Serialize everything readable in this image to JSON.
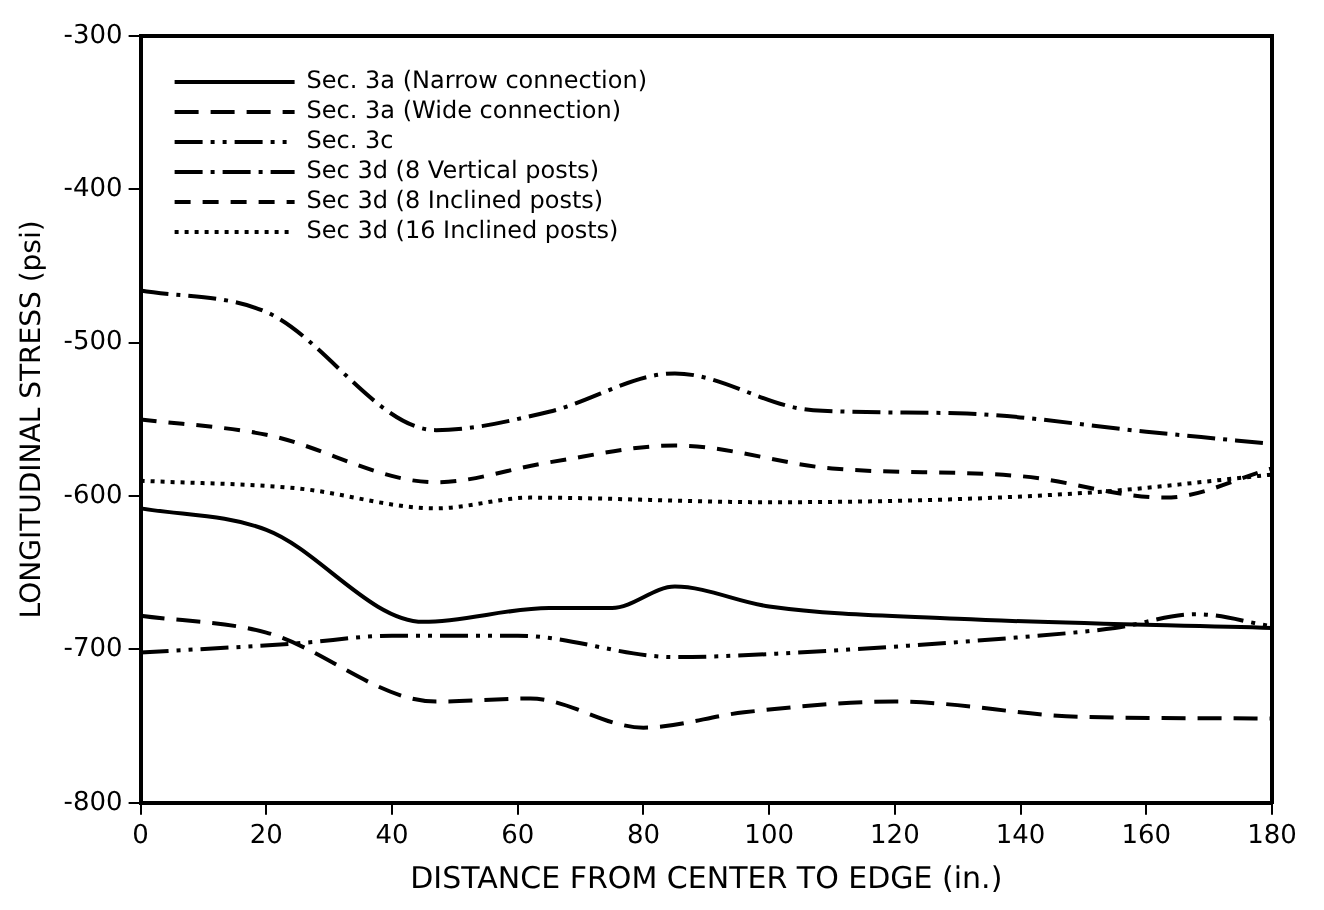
{
  "chart_data": {
    "type": "line",
    "xlabel": "DISTANCE FROM CENTER TO EDGE (in.)",
    "ylabel": "LONGITUDINAL STRESS (psi)",
    "xlim": [
      0,
      180
    ],
    "xticks": [
      0,
      20,
      40,
      60,
      80,
      100,
      120,
      140,
      160,
      180
    ],
    "ylim": [
      -800,
      -300
    ],
    "yticks": [
      -800,
      -700,
      -600,
      -500,
      -400,
      -300
    ],
    "grid": false,
    "legend": "top",
    "marker": "none",
    "series": [
      {
        "name": "Sec. 3a (Narrow connection)",
        "color": "#000000",
        "line_style": "solid",
        "x": [
          0,
          20,
          45,
          65,
          75,
          85,
          100,
          130,
          180
        ],
        "values": [
          -608,
          -622,
          -682,
          -673,
          -673,
          -659,
          -672,
          -680,
          -686
        ]
      },
      {
        "name": "Sec. 3a (Wide connection)",
        "color": "#000000",
        "line_style": "dashed",
        "x": [
          0,
          20,
          47,
          62,
          80,
          96,
          120,
          150,
          180
        ],
        "values": [
          -678,
          -689,
          -734,
          -732,
          -751,
          -741,
          -734,
          -744,
          -745
        ]
      },
      {
        "name": "Sec. 3c",
        "color": "#000000",
        "line_style": "dashed",
        "x": [
          0,
          25,
          40,
          60,
          85,
          100,
          140,
          155,
          168,
          180
        ],
        "values": [
          -702,
          -696,
          -691,
          -691,
          -705,
          -703,
          -692,
          -686,
          -677,
          -685
        ]
      },
      {
        "name": "Sec 3d (8 Vertical posts)",
        "color": "#000000",
        "line_style": "dashed",
        "x": [
          0,
          20,
          47,
          65,
          85,
          107,
          130,
          160,
          180
        ],
        "values": [
          -466,
          -480,
          -557,
          -545,
          -520,
          -544,
          -546,
          -558,
          -566
        ]
      },
      {
        "name": "Sec 3d (8 Inclined posts)",
        "color": "#000000",
        "line_style": "dashed",
        "x": [
          0,
          20,
          47,
          65,
          85,
          110,
          140,
          163,
          180
        ],
        "values": [
          -550,
          -560,
          -591,
          -578,
          -567,
          -582,
          -587,
          -601,
          -582
        ]
      },
      {
        "name": "Sec 3d (16 Inclined posts)",
        "color": "#000000",
        "line_style": "dotted",
        "x": [
          0,
          25,
          47,
          62,
          100,
          150,
          180
        ],
        "values": [
          -590,
          -595,
          -608,
          -601,
          -604,
          -598,
          -586
        ]
      }
    ]
  }
}
